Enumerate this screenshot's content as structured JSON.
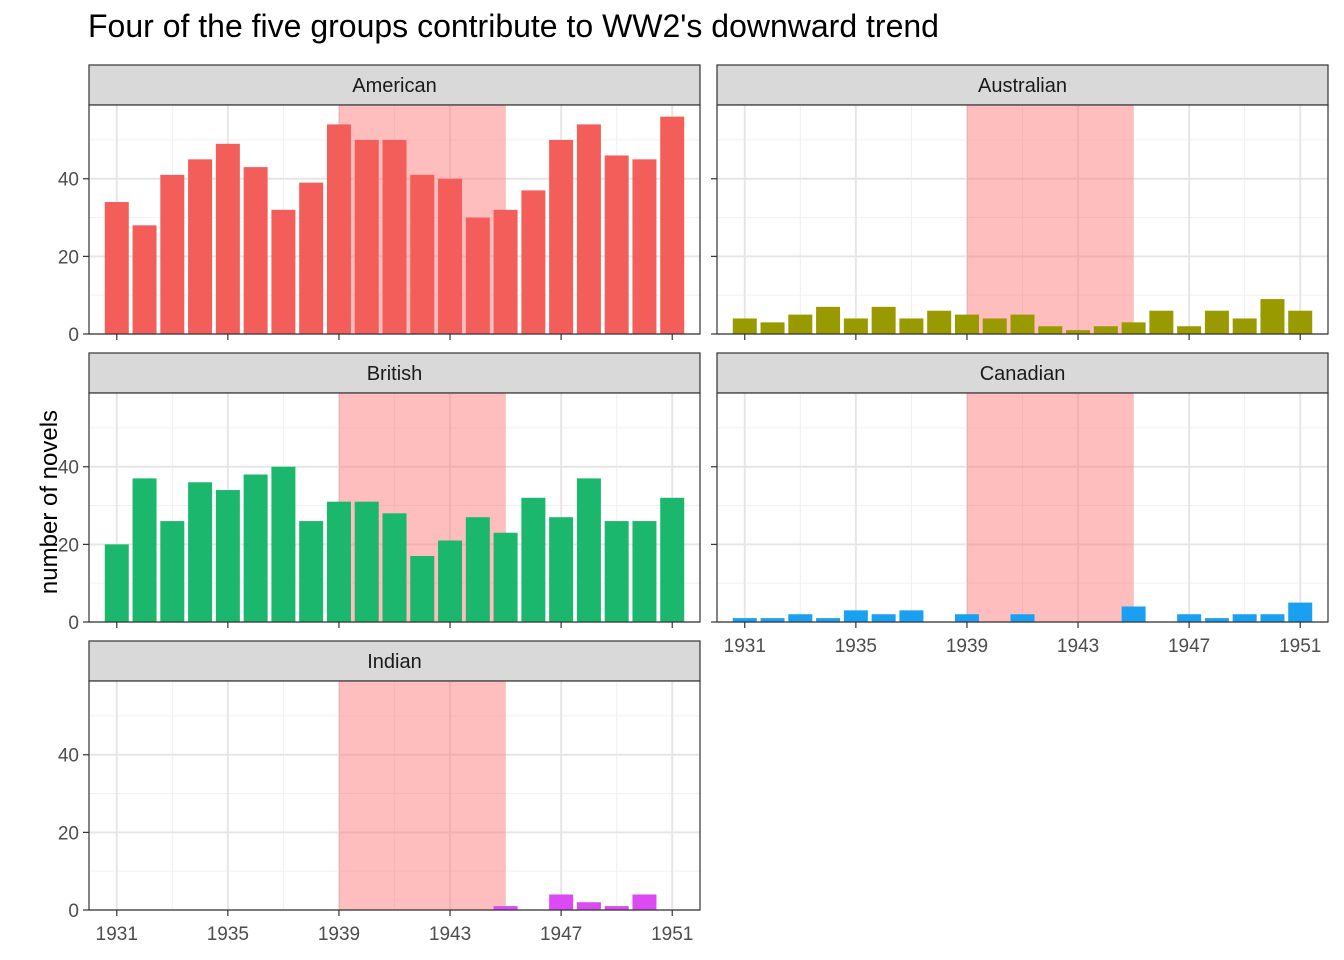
{
  "chart_data": {
    "type": "bar",
    "title": "Four of the five groups contribute to WW2's downward trend",
    "xlabel": "",
    "ylabel": "number of novels",
    "x": [
      1931,
      1932,
      1933,
      1934,
      1935,
      1936,
      1937,
      1938,
      1939,
      1940,
      1941,
      1942,
      1943,
      1944,
      1945,
      1946,
      1947,
      1948,
      1949,
      1950,
      1951
    ],
    "x_tick_labels": [
      "1931",
      "1935",
      "1939",
      "1943",
      "1947",
      "1951"
    ],
    "x_ticks": [
      1931,
      1935,
      1939,
      1943,
      1947,
      1951
    ],
    "y_tick_labels": [
      "0",
      "20",
      "40"
    ],
    "y_ticks": [
      0,
      20,
      40
    ],
    "ylim": [
      0,
      59
    ],
    "xlim": [
      1930,
      1952
    ],
    "highlight_range": [
      1939,
      1945
    ],
    "highlight_color": "#ff6e6e",
    "facets": [
      {
        "name": "American",
        "color": "#F35E5A",
        "values": [
          34,
          28,
          41,
          45,
          49,
          43,
          32,
          39,
          54,
          50,
          50,
          41,
          40,
          30,
          32,
          37,
          50,
          54,
          46,
          45,
          56
        ]
      },
      {
        "name": "Australian",
        "color": "#999900",
        "values": [
          4,
          3,
          5,
          7,
          4,
          7,
          4,
          6,
          5,
          4,
          5,
          2,
          1,
          2,
          3,
          6,
          2,
          6,
          4,
          9,
          6
        ]
      },
      {
        "name": "British",
        "color": "#1BB76C",
        "values": [
          20,
          37,
          26,
          36,
          34,
          38,
          40,
          26,
          31,
          31,
          28,
          17,
          21,
          27,
          23,
          32,
          27,
          37,
          26,
          26,
          32
        ]
      },
      {
        "name": "Canadian",
        "color": "#19A0F2",
        "values": [
          1,
          1,
          2,
          1,
          3,
          2,
          3,
          0,
          2,
          0,
          2,
          0,
          0,
          0,
          4,
          0,
          2,
          1,
          2,
          2,
          5
        ]
      },
      {
        "name": "Indian",
        "color": "#DB4AF2",
        "values": [
          0,
          0,
          0,
          0,
          0,
          0,
          0,
          0,
          0,
          0,
          0,
          0,
          0,
          0,
          1,
          0,
          4,
          2,
          1,
          4,
          0
        ]
      }
    ]
  }
}
